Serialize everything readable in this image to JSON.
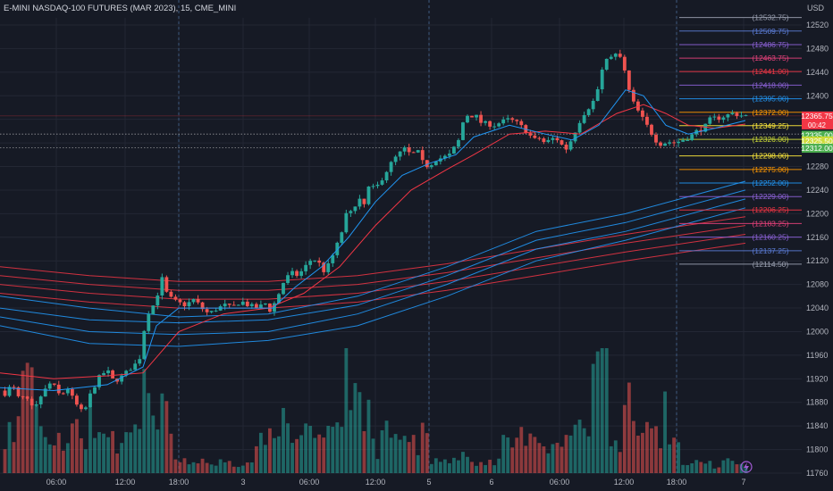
{
  "header": {
    "title": "E-MINI NASDAQ-100 FUTURES (MAR 2023), 15, CME_MINI",
    "currency": "USD"
  },
  "price_badge": {
    "price": "12365.75",
    "countdown": "00:42",
    "color": "#f23645"
  },
  "colors": {
    "background": "#161a25",
    "up": "#26a69a",
    "down": "#ef5350",
    "grid": "#232734",
    "axis_text": "#b2b5be",
    "ma_blue": "#2196f3",
    "ma_red": "#f23645",
    "session_line": "#3d5a80"
  },
  "chart_data": {
    "type": "candlestick",
    "title": "E-MINI NASDAQ-100 FUTURES (MAR 2023), 15, CME_MINI",
    "ylim": [
      11740,
      12580
    ],
    "y_ticks": [
      11760,
      11800,
      11840,
      11880,
      11920,
      11960,
      12000,
      12040,
      12080,
      12120,
      12160,
      12200,
      12240,
      12280,
      12320,
      12360,
      12400,
      12440,
      12480,
      12520
    ],
    "x_ticks": [
      "06:00",
      "12:00",
      "18:00",
      "3",
      "06:00",
      "12:00",
      "5",
      "6",
      "06:00",
      "12:00",
      "18:00",
      "7"
    ],
    "price_path": [
      [
        0,
        11900
      ],
      [
        8,
        11895
      ],
      [
        16,
        11910
      ],
      [
        24,
        11885
      ],
      [
        30,
        11890
      ],
      [
        40,
        11870
      ],
      [
        50,
        11895
      ],
      [
        60,
        11915
      ],
      [
        70,
        11890
      ],
      [
        78,
        11905
      ],
      [
        86,
        11880
      ],
      [
        96,
        11860
      ],
      [
        104,
        11895
      ],
      [
        112,
        11920
      ],
      [
        122,
        11935
      ],
      [
        130,
        11915
      ],
      [
        140,
        11925
      ],
      [
        150,
        11940
      ],
      [
        158,
        11950
      ],
      [
        163,
        11990
      ],
      [
        166,
        12040
      ],
      [
        170,
        12030
      ],
      [
        178,
        12060
      ],
      [
        184,
        12090
      ],
      [
        190,
        12060
      ],
      [
        200,
        12050
      ],
      [
        210,
        12045
      ],
      [
        220,
        12055
      ],
      [
        228,
        12040
      ],
      [
        236,
        12030
      ],
      [
        244,
        12038
      ],
      [
        254,
        12045
      ],
      [
        262,
        12040
      ],
      [
        272,
        12052
      ],
      [
        280,
        12045
      ],
      [
        290,
        12040
      ],
      [
        300,
        12048
      ],
      [
        305,
        12035
      ],
      [
        312,
        12055
      ],
      [
        320,
        12085
      ],
      [
        328,
        12100
      ],
      [
        336,
        12095
      ],
      [
        344,
        12110
      ],
      [
        352,
        12125
      ],
      [
        360,
        12115
      ],
      [
        366,
        12100
      ],
      [
        372,
        12120
      ],
      [
        378,
        12140
      ],
      [
        385,
        12170
      ],
      [
        392,
        12210
      ],
      [
        398,
        12205
      ],
      [
        404,
        12230
      ],
      [
        410,
        12215
      ],
      [
        416,
        12250
      ],
      [
        422,
        12240
      ],
      [
        430,
        12260
      ],
      [
        436,
        12275
      ],
      [
        442,
        12290
      ],
      [
        448,
        12300
      ],
      [
        455,
        12310
      ],
      [
        462,
        12300
      ],
      [
        470,
        12305
      ],
      [
        476,
        12285
      ],
      [
        482,
        12280
      ],
      [
        490,
        12292
      ],
      [
        498,
        12295
      ],
      [
        506,
        12300
      ],
      [
        512,
        12315
      ],
      [
        518,
        12330
      ],
      [
        522,
        12370
      ],
      [
        528,
        12365
      ],
      [
        534,
        12368
      ],
      [
        540,
        12355
      ],
      [
        548,
        12352
      ],
      [
        556,
        12350
      ],
      [
        564,
        12356
      ],
      [
        572,
        12360
      ],
      [
        580,
        12355
      ],
      [
        588,
        12345
      ],
      [
        594,
        12335
      ],
      [
        600,
        12325
      ],
      [
        606,
        12328
      ],
      [
        612,
        12320
      ],
      [
        618,
        12325
      ],
      [
        624,
        12330
      ],
      [
        630,
        12318
      ],
      [
        636,
        12310
      ],
      [
        640,
        12320
      ],
      [
        646,
        12340
      ],
      [
        652,
        12360
      ],
      [
        658,
        12375
      ],
      [
        664,
        12385
      ],
      [
        670,
        12400
      ],
      [
        676,
        12440
      ],
      [
        682,
        12470
      ],
      [
        688,
        12462
      ],
      [
        694,
        12475
      ],
      [
        700,
        12450
      ],
      [
        706,
        12410
      ],
      [
        712,
        12385
      ],
      [
        718,
        12370
      ],
      [
        724,
        12355
      ],
      [
        730,
        12340
      ],
      [
        736,
        12325
      ],
      [
        742,
        12318
      ],
      [
        750,
        12322
      ],
      [
        758,
        12320
      ],
      [
        766,
        12325
      ],
      [
        774,
        12330
      ],
      [
        782,
        12340
      ],
      [
        790,
        12345
      ],
      [
        798,
        12362
      ],
      [
        806,
        12362
      ],
      [
        814,
        12366
      ],
      [
        822,
        12370
      ],
      [
        828,
        12368
      ],
      [
        834,
        12366
      ]
    ],
    "sma_fast": [
      [
        0,
        11905
      ],
      [
        60,
        11900
      ],
      [
        120,
        11910
      ],
      [
        160,
        11940
      ],
      [
        175,
        12010
      ],
      [
        200,
        12040
      ],
      [
        260,
        12040
      ],
      [
        305,
        12040
      ],
      [
        330,
        12075
      ],
      [
        360,
        12110
      ],
      [
        390,
        12160
      ],
      [
        420,
        12220
      ],
      [
        450,
        12265
      ],
      [
        480,
        12285
      ],
      [
        510,
        12300
      ],
      [
        530,
        12330
      ],
      [
        570,
        12350
      ],
      [
        610,
        12335
      ],
      [
        640,
        12325
      ],
      [
        670,
        12350
      ],
      [
        700,
        12410
      ],
      [
        720,
        12400
      ],
      [
        745,
        12350
      ],
      [
        770,
        12335
      ],
      [
        800,
        12345
      ],
      [
        834,
        12358
      ]
    ],
    "sma_slow": [
      [
        0,
        11930
      ],
      [
        60,
        11920
      ],
      [
        120,
        11925
      ],
      [
        160,
        11930
      ],
      [
        200,
        12000
      ],
      [
        250,
        12030
      ],
      [
        300,
        12040
      ],
      [
        340,
        12065
      ],
      [
        380,
        12110
      ],
      [
        420,
        12180
      ],
      [
        460,
        12240
      ],
      [
        500,
        12275
      ],
      [
        530,
        12300
      ],
      [
        570,
        12335
      ],
      [
        610,
        12340
      ],
      [
        650,
        12335
      ],
      [
        690,
        12370
      ],
      [
        720,
        12385
      ],
      [
        745,
        12370
      ],
      [
        770,
        12350
      ],
      [
        800,
        12345
      ],
      [
        834,
        12352
      ]
    ],
    "ribbon_blue": [
      [
        [
          0,
          12060
        ],
        [
          100,
          12040
        ],
        [
          200,
          12025
        ],
        [
          300,
          12030
        ],
        [
          400,
          12060
        ],
        [
          500,
          12110
        ],
        [
          600,
          12170
        ],
        [
          700,
          12200
        ],
        [
          834,
          12255
        ]
      ],
      [
        [
          0,
          12040
        ],
        [
          100,
          12020
        ],
        [
          200,
          12015
        ],
        [
          300,
          12020
        ],
        [
          400,
          12045
        ],
        [
          500,
          12095
        ],
        [
          600,
          12155
        ],
        [
          700,
          12185
        ],
        [
          834,
          12240
        ]
      ],
      [
        [
          0,
          12025
        ],
        [
          100,
          12000
        ],
        [
          200,
          11995
        ],
        [
          300,
          12000
        ],
        [
          400,
          12030
        ],
        [
          500,
          12080
        ],
        [
          600,
          12140
        ],
        [
          700,
          12170
        ],
        [
          834,
          12225
        ]
      ],
      [
        [
          0,
          12010
        ],
        [
          100,
          11980
        ],
        [
          200,
          11975
        ],
        [
          300,
          11985
        ],
        [
          400,
          12010
        ],
        [
          500,
          12060
        ],
        [
          600,
          12120
        ],
        [
          700,
          12155
        ],
        [
          834,
          12210
        ]
      ]
    ],
    "ribbon_red": [
      [
        [
          0,
          12110
        ],
        [
          100,
          12095
        ],
        [
          200,
          12085
        ],
        [
          300,
          12085
        ],
        [
          400,
          12095
        ],
        [
          500,
          12115
        ],
        [
          600,
          12140
        ],
        [
          700,
          12165
        ],
        [
          834,
          12195
        ]
      ],
      [
        [
          0,
          12095
        ],
        [
          100,
          12080
        ],
        [
          200,
          12070
        ],
        [
          300,
          12070
        ],
        [
          400,
          12080
        ],
        [
          500,
          12100
        ],
        [
          600,
          12125
        ],
        [
          700,
          12150
        ],
        [
          834,
          12180
        ]
      ],
      [
        [
          0,
          12080
        ],
        [
          100,
          12065
        ],
        [
          200,
          12055
        ],
        [
          300,
          12055
        ],
        [
          400,
          12065
        ],
        [
          500,
          12085
        ],
        [
          600,
          12110
        ],
        [
          700,
          12135
        ],
        [
          834,
          12165
        ]
      ],
      [
        [
          0,
          12065
        ],
        [
          100,
          12050
        ],
        [
          200,
          12040
        ],
        [
          300,
          12040
        ],
        [
          400,
          12050
        ],
        [
          500,
          12070
        ],
        [
          600,
          12095
        ],
        [
          700,
          12120
        ],
        [
          834,
          12150
        ]
      ]
    ],
    "levels": [
      {
        "label": "(12532.75)",
        "value": 12532.75,
        "color": "#9aa0b0"
      },
      {
        "label": "(12509.75)",
        "value": 12509.75,
        "color": "#5b7cd6"
      },
      {
        "label": "(12486.75)",
        "value": 12486.75,
        "color": "#8d62d8"
      },
      {
        "label": "(12463.75)",
        "value": 12463.75,
        "color": "#e5417a"
      },
      {
        "label": "(12441.00)",
        "value": 12441.0,
        "color": "#f23645"
      },
      {
        "label": "(12418.00)",
        "value": 12418.0,
        "color": "#8d62d8"
      },
      {
        "label": "(12395.00)",
        "value": 12395.0,
        "color": "#2196f3"
      },
      {
        "label": "(12372.00)",
        "value": 12372.0,
        "color": "#ff9800"
      },
      {
        "label": "(12349.25)",
        "value": 12349.25,
        "color": "#ffeb3b"
      },
      {
        "label": "(12326.00)",
        "value": 12326.0,
        "color": "#cddc39"
      },
      {
        "label": "(12298.00)",
        "value": 12298.0,
        "color": "#ffeb3b"
      },
      {
        "label": "(12275.00)",
        "value": 12275.0,
        "color": "#ff9800"
      },
      {
        "label": "(12252.00)",
        "value": 12252.0,
        "color": "#2196f3"
      },
      {
        "label": "(12229.00)",
        "value": 12229.0,
        "color": "#8d62d8"
      },
      {
        "label": "(12206.25)",
        "value": 12206.25,
        "color": "#f23645"
      },
      {
        "label": "(12183.25)",
        "value": 12183.25,
        "color": "#e5417a"
      },
      {
        "label": "(12160.25)",
        "value": 12160.25,
        "color": "#8d62d8"
      },
      {
        "label": "(12137.25)",
        "value": 12137.25,
        "color": "#5b7cd6"
      },
      {
        "label": "(12114.50)",
        "value": 12114.5,
        "color": "#9aa0b0"
      }
    ],
    "price_tags": [
      {
        "label": "12365.75",
        "value": 12365.75,
        "color": "#f23645"
      },
      {
        "label": "12335.00",
        "value": 12333.0,
        "color": "#4caf50"
      },
      {
        "label": "12325.50",
        "value": 12323.5,
        "color": "#cddc39"
      },
      {
        "label": "12312.00",
        "value": 12311.0,
        "color": "#4caf50"
      }
    ],
    "dotted_lines": [
      12335,
      12312
    ],
    "session_lines_x": [
      200,
      480,
      757
    ]
  }
}
